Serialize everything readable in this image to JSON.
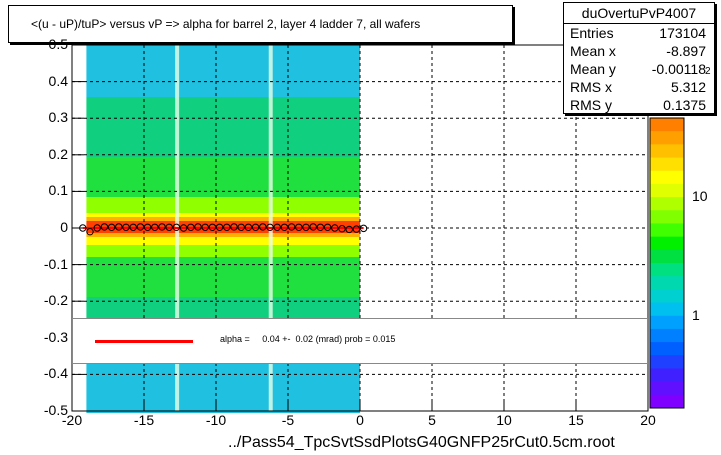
{
  "chart_data": {
    "type": "heatmap",
    "title": "<(u - uP)/tuP> versus   vP => alpha for barrel 2, layer 4 ladder 7, all wafers",
    "xlabel": "../Pass54_TpcSvtSsdPlotsG40GNFP25rCut0.5cm.root",
    "ylabel": "",
    "xlim": [
      -20,
      20
    ],
    "ylim": [
      -0.5,
      0.5
    ],
    "x_ticks": [
      "-20",
      "-15",
      "-10",
      "-5",
      "0",
      "5",
      "10",
      "15",
      "20"
    ],
    "y_ticks": [
      "0.5",
      "0.4",
      "0.3",
      "0.2",
      "0.1",
      "0",
      "-0.1",
      "-0.2",
      "-0.3",
      "-0.4",
      "-0.5"
    ],
    "x_tick_values": [
      -20,
      -15,
      -10,
      -5,
      0,
      5,
      10,
      15,
      20
    ],
    "y_tick_values": [
      0.5,
      0.4,
      0.3,
      0.2,
      0.1,
      0,
      -0.1,
      -0.2,
      -0.3,
      -0.4,
      -0.5
    ],
    "grid": true,
    "populated_x_range": [
      -19,
      0
    ],
    "colorbar_ticks": [
      "1",
      "10"
    ],
    "colorbar_exponent": "2",
    "profile_points": {
      "x": [
        -19.25,
        -18.75,
        -18.25,
        -17.75,
        -17.25,
        -16.75,
        -16.25,
        -15.75,
        -15.25,
        -14.75,
        -14.25,
        -13.75,
        -13.25,
        -12.75,
        -12.25,
        -11.75,
        -11.25,
        -10.75,
        -10.25,
        -9.75,
        -9.25,
        -8.75,
        -8.25,
        -7.75,
        -7.25,
        -6.75,
        -6.25,
        -5.75,
        -5.25,
        -4.75,
        -4.25,
        -3.75,
        -3.25,
        -2.75,
        -2.25,
        -1.75,
        -1.25,
        -0.75,
        -0.25,
        0.25
      ],
      "y": [
        0.0,
        -0.01,
        0.0,
        0.003,
        0.002,
        0.003,
        0.002,
        0.002,
        0.003,
        0.002,
        0.002,
        0.003,
        0.002,
        0.002,
        0.0,
        0.002,
        0.003,
        0.002,
        0.002,
        0.002,
        0.002,
        0.003,
        0.002,
        0.002,
        0.002,
        0.003,
        0.002,
        0.002,
        0.002,
        0.003,
        0.002,
        0.002,
        0.003,
        0.002,
        0.002,
        0.0,
        -0.002,
        -0.004,
        -0.003,
        -0.001
      ]
    },
    "fit_line": {
      "x": [
        -19.25,
        0.25
      ],
      "y": [
        0.0,
        0.0
      ],
      "color": "#ff0000"
    }
  },
  "stats": {
    "name": "duOvertuPvP4007",
    "rows": [
      {
        "label": "Entries",
        "value": "173104"
      },
      {
        "label": "Mean x",
        "value": "-8.897"
      },
      {
        "label": "Mean y",
        "value": "-0.00118"
      },
      {
        "label": "RMS x",
        "value": "5.312"
      },
      {
        "label": "RMS y",
        "value": "0.1375"
      }
    ]
  },
  "legend": {
    "text": "alpha =     0.04 +-  0.02 (mrad) prob = 0.015",
    "line_color": "#ff0000"
  }
}
